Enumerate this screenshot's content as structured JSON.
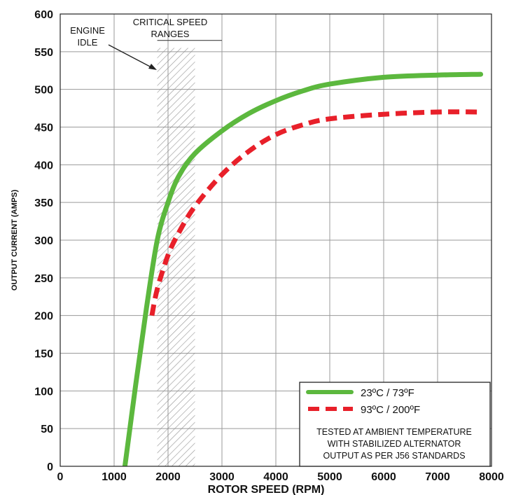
{
  "chart_data": {
    "type": "line",
    "xlabel": "ROTOR SPEED (RPM)",
    "ylabel": "OUTPUT CURRENT (AMPS)",
    "xlim": [
      0,
      8000
    ],
    "ylim": [
      0,
      600
    ],
    "x_ticks": [
      0,
      1000,
      2000,
      3000,
      4000,
      5000,
      6000,
      7000,
      8000
    ],
    "y_ticks": [
      0,
      50,
      100,
      150,
      200,
      250,
      300,
      350,
      400,
      450,
      500,
      550,
      600
    ],
    "grid": true,
    "legend_position": "bottom-right",
    "series": [
      {
        "name": "23ºC / 73ºF",
        "color": "#5cb83e",
        "style": "solid",
        "x": [
          1200,
          1400,
          1600,
          1800,
          2000,
          2200,
          2500,
          3000,
          3500,
          4000,
          4500,
          5000,
          6000,
          7000,
          7800
        ],
        "y": [
          0,
          108,
          210,
          300,
          350,
          385,
          415,
          445,
          468,
          485,
          498,
          507,
          516,
          519,
          520
        ]
      },
      {
        "name": "93ºC / 200ºF",
        "color": "#e8202a",
        "style": "dashed",
        "x": [
          1700,
          1800,
          2000,
          2200,
          2500,
          3000,
          3500,
          4000,
          4500,
          5000,
          6000,
          7000,
          7800
        ],
        "y": [
          200,
          235,
          280,
          310,
          345,
          387,
          418,
          440,
          453,
          461,
          467,
          470,
          470
        ]
      }
    ],
    "annotations": {
      "engine_idle": "ENGINE IDLE",
      "critical_speed": "CRITICAL SPEED RANGES",
      "critical_range": [
        1800,
        2500
      ],
      "note_lines": [
        "TESTED AT AMBIENT TEMPERATURE",
        "WITH  STABILIZED ALTERNATOR",
        "OUTPUT AS PER J56 STANDARDS"
      ]
    }
  }
}
